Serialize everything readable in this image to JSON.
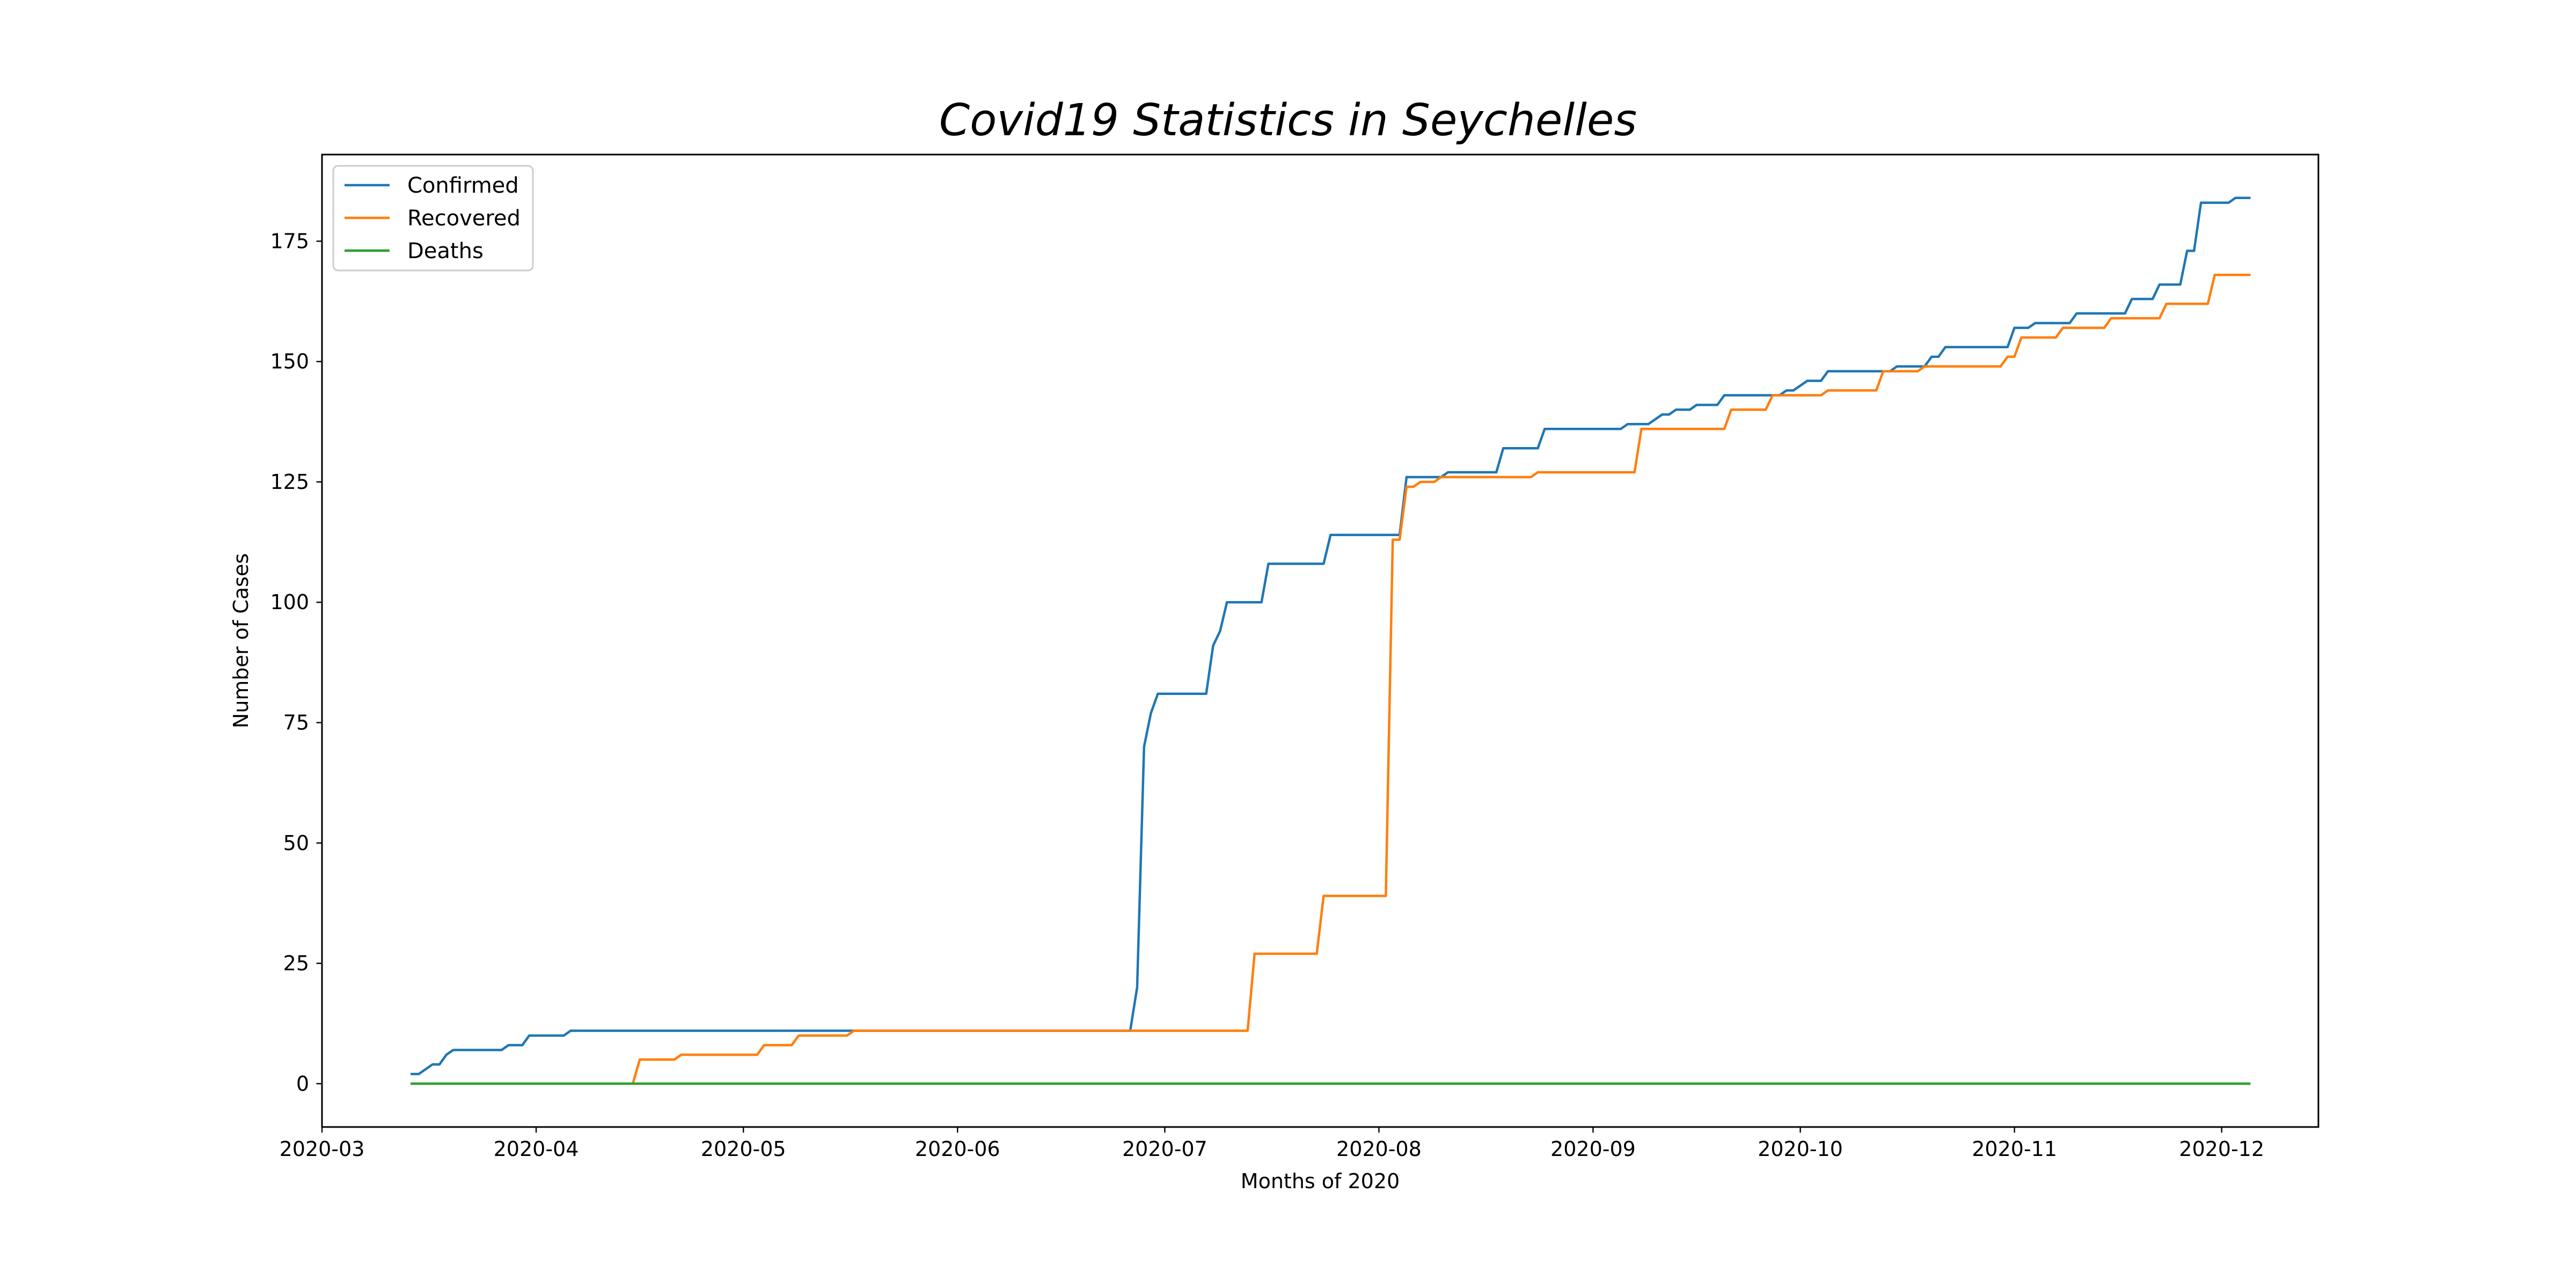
{
  "chart_data": {
    "type": "line",
    "title": "Covid19 Statistics in Seychelles",
    "xlabel": "Months of 2020",
    "ylabel": "Number of Cases",
    "xlim": [
      "2020-03-01",
      "2020-12-15"
    ],
    "ylim": [
      -9,
      193
    ],
    "x_ticks": [
      {
        "date": "2020-03-01",
        "label": "2020-03"
      },
      {
        "date": "2020-04-01",
        "label": "2020-04"
      },
      {
        "date": "2020-05-01",
        "label": "2020-05"
      },
      {
        "date": "2020-06-01",
        "label": "2020-06"
      },
      {
        "date": "2020-07-01",
        "label": "2020-07"
      },
      {
        "date": "2020-08-01",
        "label": "2020-08"
      },
      {
        "date": "2020-09-01",
        "label": "2020-09"
      },
      {
        "date": "2020-10-01",
        "label": "2020-10"
      },
      {
        "date": "2020-11-01",
        "label": "2020-11"
      },
      {
        "date": "2020-12-01",
        "label": "2020-12"
      }
    ],
    "y_ticks": [
      0,
      25,
      50,
      75,
      100,
      125,
      150,
      175
    ],
    "grid": false,
    "legend_position": "top-left",
    "series": [
      {
        "name": "Confirmed",
        "color": "#1f77b4",
        "points": [
          [
            "2020-03-14",
            2
          ],
          [
            "2020-03-15",
            2
          ],
          [
            "2020-03-17",
            4
          ],
          [
            "2020-03-18",
            4
          ],
          [
            "2020-03-19",
            6
          ],
          [
            "2020-03-20",
            7
          ],
          [
            "2020-03-27",
            7
          ],
          [
            "2020-03-28",
            8
          ],
          [
            "2020-03-30",
            8
          ],
          [
            "2020-03-31",
            10
          ],
          [
            "2020-04-05",
            10
          ],
          [
            "2020-04-06",
            11
          ],
          [
            "2020-06-26",
            11
          ],
          [
            "2020-06-27",
            20
          ],
          [
            "2020-06-28",
            70
          ],
          [
            "2020-06-29",
            77
          ],
          [
            "2020-06-30",
            81
          ],
          [
            "2020-07-07",
            81
          ],
          [
            "2020-07-08",
            91
          ],
          [
            "2020-07-09",
            94
          ],
          [
            "2020-07-10",
            100
          ],
          [
            "2020-07-15",
            100
          ],
          [
            "2020-07-16",
            108
          ],
          [
            "2020-07-24",
            108
          ],
          [
            "2020-07-25",
            114
          ],
          [
            "2020-08-04",
            114
          ],
          [
            "2020-08-05",
            126
          ],
          [
            "2020-08-10",
            126
          ],
          [
            "2020-08-11",
            127
          ],
          [
            "2020-08-18",
            127
          ],
          [
            "2020-08-19",
            132
          ],
          [
            "2020-08-24",
            132
          ],
          [
            "2020-08-25",
            136
          ],
          [
            "2020-09-05",
            136
          ],
          [
            "2020-09-06",
            137
          ],
          [
            "2020-09-09",
            137
          ],
          [
            "2020-09-10",
            138
          ],
          [
            "2020-09-11",
            139
          ],
          [
            "2020-09-12",
            139
          ],
          [
            "2020-09-13",
            140
          ],
          [
            "2020-09-15",
            140
          ],
          [
            "2020-09-16",
            141
          ],
          [
            "2020-09-19",
            141
          ],
          [
            "2020-09-20",
            143
          ],
          [
            "2020-09-28",
            143
          ],
          [
            "2020-09-29",
            144
          ],
          [
            "2020-09-30",
            144
          ],
          [
            "2020-10-01",
            145
          ],
          [
            "2020-10-02",
            146
          ],
          [
            "2020-10-04",
            146
          ],
          [
            "2020-10-05",
            148
          ],
          [
            "2020-10-14",
            148
          ],
          [
            "2020-10-15",
            149
          ],
          [
            "2020-10-19",
            149
          ],
          [
            "2020-10-20",
            151
          ],
          [
            "2020-10-21",
            151
          ],
          [
            "2020-10-22",
            153
          ],
          [
            "2020-10-31",
            153
          ],
          [
            "2020-11-01",
            157
          ],
          [
            "2020-11-03",
            157
          ],
          [
            "2020-11-04",
            158
          ],
          [
            "2020-11-09",
            158
          ],
          [
            "2020-11-10",
            160
          ],
          [
            "2020-11-17",
            160
          ],
          [
            "2020-11-18",
            163
          ],
          [
            "2020-11-21",
            163
          ],
          [
            "2020-11-22",
            166
          ],
          [
            "2020-11-25",
            166
          ],
          [
            "2020-11-26",
            173
          ],
          [
            "2020-11-27",
            173
          ],
          [
            "2020-11-28",
            183
          ],
          [
            "2020-12-02",
            183
          ],
          [
            "2020-12-03",
            184
          ],
          [
            "2020-12-05",
            184
          ]
        ]
      },
      {
        "name": "Recovered",
        "color": "#ff7f0e",
        "points": [
          [
            "2020-03-14",
            0
          ],
          [
            "2020-04-15",
            0
          ],
          [
            "2020-04-16",
            5
          ],
          [
            "2020-04-21",
            5
          ],
          [
            "2020-04-22",
            6
          ],
          [
            "2020-05-03",
            6
          ],
          [
            "2020-05-04",
            8
          ],
          [
            "2020-05-08",
            8
          ],
          [
            "2020-05-09",
            10
          ],
          [
            "2020-05-16",
            10
          ],
          [
            "2020-05-17",
            11
          ],
          [
            "2020-07-13",
            11
          ],
          [
            "2020-07-14",
            27
          ],
          [
            "2020-07-23",
            27
          ],
          [
            "2020-07-24",
            39
          ],
          [
            "2020-08-02",
            39
          ],
          [
            "2020-08-03",
            113
          ],
          [
            "2020-08-04",
            113
          ],
          [
            "2020-08-05",
            124
          ],
          [
            "2020-08-06",
            124
          ],
          [
            "2020-08-07",
            125
          ],
          [
            "2020-08-09",
            125
          ],
          [
            "2020-08-10",
            126
          ],
          [
            "2020-08-23",
            126
          ],
          [
            "2020-08-24",
            127
          ],
          [
            "2020-09-07",
            127
          ],
          [
            "2020-09-08",
            136
          ],
          [
            "2020-09-20",
            136
          ],
          [
            "2020-09-21",
            140
          ],
          [
            "2020-09-26",
            140
          ],
          [
            "2020-09-27",
            143
          ],
          [
            "2020-10-04",
            143
          ],
          [
            "2020-10-05",
            144
          ],
          [
            "2020-10-12",
            144
          ],
          [
            "2020-10-13",
            148
          ],
          [
            "2020-10-18",
            148
          ],
          [
            "2020-10-19",
            149
          ],
          [
            "2020-10-30",
            149
          ],
          [
            "2020-10-31",
            151
          ],
          [
            "2020-11-01",
            151
          ],
          [
            "2020-11-02",
            155
          ],
          [
            "2020-11-07",
            155
          ],
          [
            "2020-11-08",
            157
          ],
          [
            "2020-11-14",
            157
          ],
          [
            "2020-11-15",
            159
          ],
          [
            "2020-11-22",
            159
          ],
          [
            "2020-11-23",
            162
          ],
          [
            "2020-11-29",
            162
          ],
          [
            "2020-11-30",
            168
          ],
          [
            "2020-12-05",
            168
          ]
        ]
      },
      {
        "name": "Deaths",
        "color": "#2ca02c",
        "points": [
          [
            "2020-03-14",
            0
          ],
          [
            "2020-12-05",
            0
          ]
        ]
      }
    ]
  }
}
